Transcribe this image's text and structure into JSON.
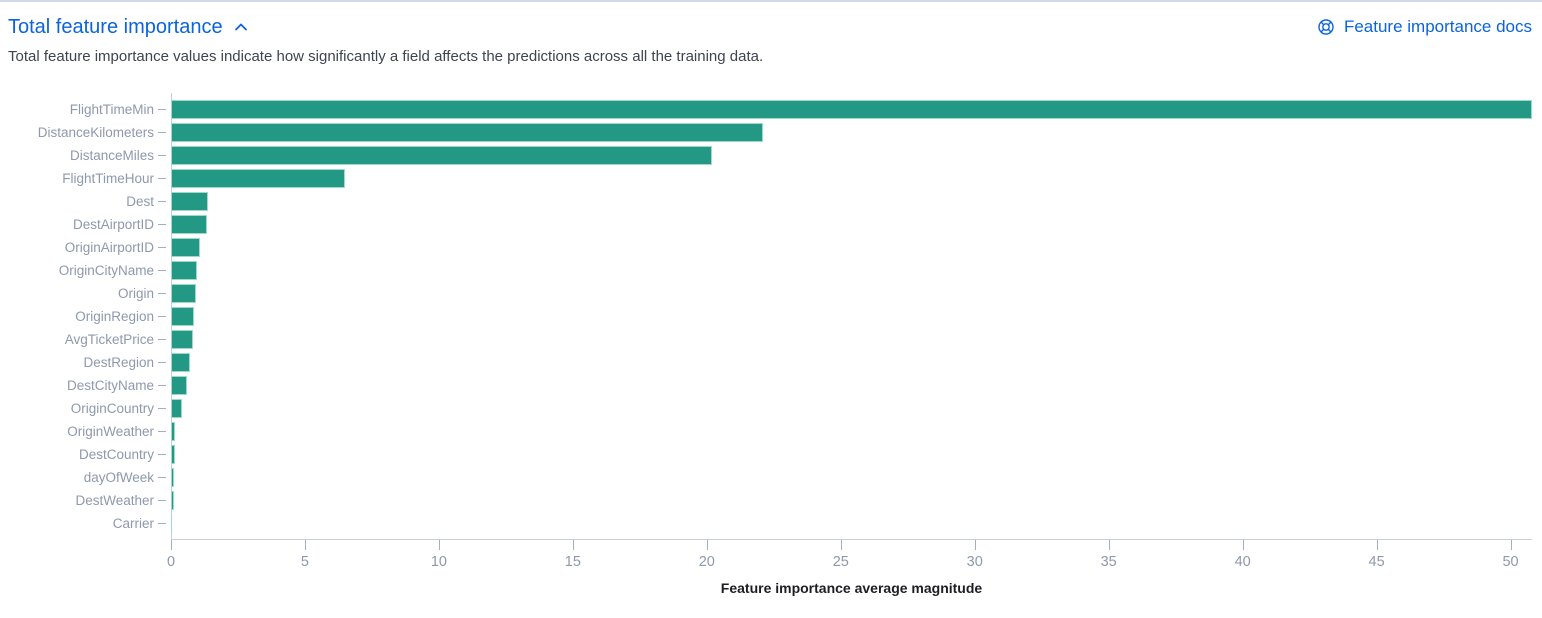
{
  "header": {
    "title": "Total feature importance",
    "docs_link_label": "Feature importance docs"
  },
  "icons": {
    "collapse": "chevron-up-icon",
    "docs": "help-ring-icon"
  },
  "subtitle": "Total feature importance values indicate how significantly a field affects the predictions across all the training data.",
  "chart_data": {
    "type": "bar",
    "orientation": "horizontal",
    "title": "",
    "xlabel": "Feature importance average magnitude",
    "ylabel": "",
    "xlim": [
      0,
      50.8
    ],
    "x_ticks": [
      0,
      5,
      10,
      15,
      20,
      25,
      30,
      35,
      40,
      45,
      50
    ],
    "grid": false,
    "legend": false,
    "categories": [
      "FlightTimeMin",
      "DistanceKilometers",
      "DistanceMiles",
      "FlightTimeHour",
      "Dest",
      "DestAirportID",
      "OriginAirportID",
      "OriginCityName",
      "Origin",
      "OriginRegion",
      "AvgTicketPrice",
      "DestRegion",
      "DestCityName",
      "OriginCountry",
      "OriginWeather",
      "DestCountry",
      "dayOfWeek",
      "DestWeather",
      "Carrier"
    ],
    "values": [
      50.8,
      22.1,
      20.2,
      6.5,
      1.37,
      1.33,
      1.07,
      0.96,
      0.93,
      0.85,
      0.81,
      0.7,
      0.59,
      0.41,
      0.16,
      0.15,
      0.12,
      0.1,
      0.04
    ]
  },
  "colors": {
    "link_blue": "#0b64dd",
    "bar_teal": "#239985",
    "bar_edge": "#9ed9c9",
    "axis_line": "#c9cedd",
    "tick_mark": "#a6aec0",
    "tick_text": "#8e99ad",
    "label_text": "#8e99ad",
    "subtitle_text": "#3e4450",
    "axis_title_text": "#1d1e24",
    "top_border": "#d4d8e8"
  }
}
